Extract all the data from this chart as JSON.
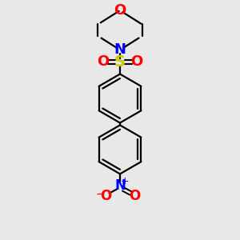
{
  "bg_color": "#e8e8e8",
  "atom_colors": {
    "C": "#000000",
    "N": "#0000ff",
    "O": "#ff0000",
    "S": "#cccc00"
  },
  "line_color": "#000000",
  "line_width": 1.6,
  "fig_size": [
    3.0,
    3.0
  ],
  "dpi": 100,
  "xlim": [
    0,
    10
  ],
  "ylim": [
    0,
    10
  ]
}
